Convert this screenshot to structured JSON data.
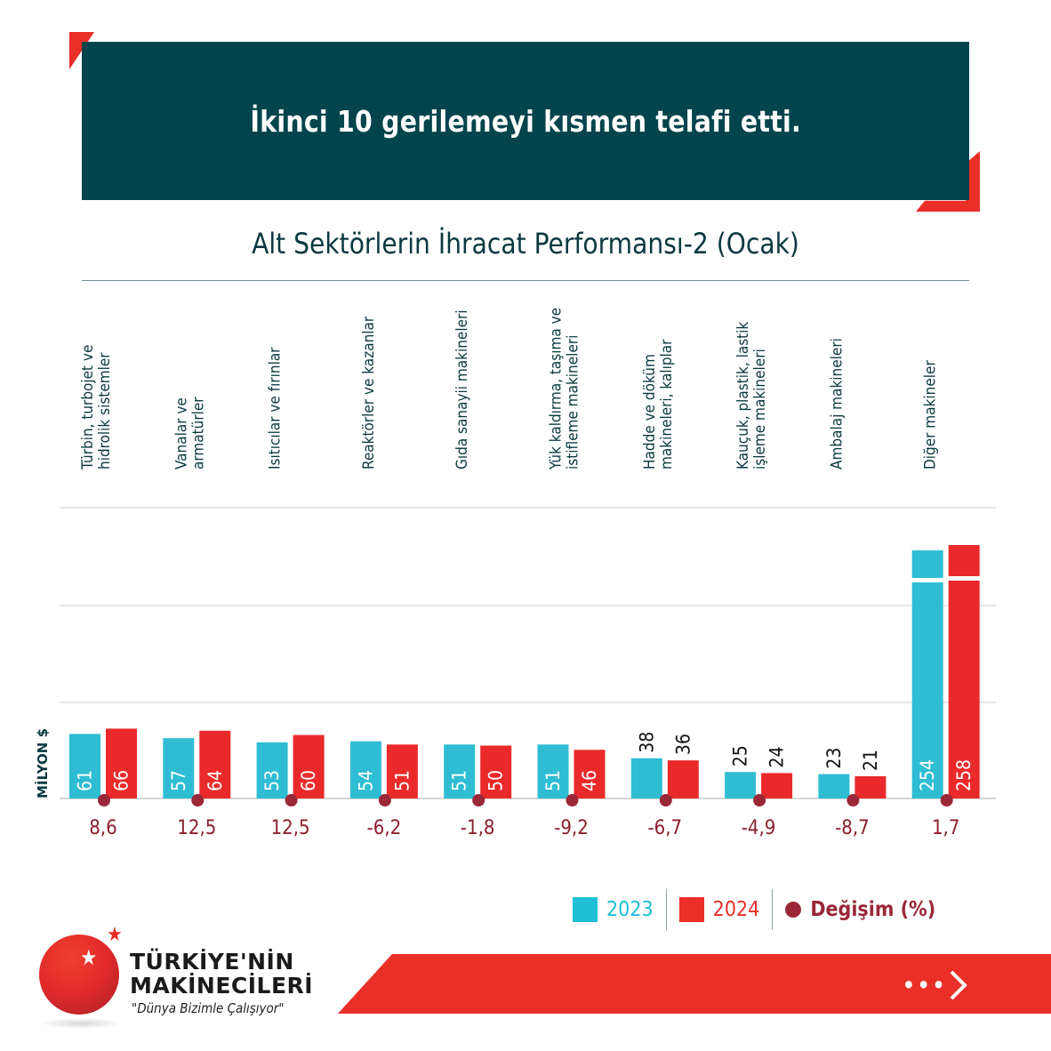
{
  "banner": {
    "headline": "İkinci 10 gerilemeyi kısmen telafi etti."
  },
  "chart_data": {
    "type": "bar",
    "title": "Alt Sektörlerin İhracat Performansı-2 (Ocak)",
    "ylabel": "MİLYON $",
    "xlabel": "",
    "grid": true,
    "axis_break": "2023 and 2024 bars for 'Diğer makineler' are truncated with a break mark",
    "categories": [
      "Türbin, turbojet ve hidrolik sistemler",
      "Vanalar ve armatürler",
      "Isıtıcılar ve fırınlar",
      "Reaktörler ve kazanlar",
      "Gıda sanayii makineleri",
      "Yük kaldırma, taşıma ve istifleme makineleri",
      "Hadde ve döküm makineleri, kalıplar",
      "Kauçuk, plastik, lastik işleme makineleri",
      "Ambalaj makineleri",
      "Diğer makineler"
    ],
    "category_lines": [
      [
        "Türbin, turbojet ve",
        "hidrolik sistemler"
      ],
      [
        "Vanalar ve",
        "armatürler"
      ],
      [
        "Isıtıcılar ve fırınlar"
      ],
      [
        "Reaktörler ve kazanlar"
      ],
      [
        "Gıda sanayii makineleri"
      ],
      [
        "Yük kaldırma, taşıma ve",
        "istifleme makineleri"
      ],
      [
        "Hadde ve döküm",
        "makineleri, kalıplar"
      ],
      [
        "Kauçuk, plastik, lastik",
        "işleme makineleri"
      ],
      [
        "Ambalaj makineleri"
      ],
      [
        "Diğer makineler"
      ]
    ],
    "series": [
      {
        "name": "2023",
        "color": "#2fbdd4",
        "values": [
          61,
          57,
          53,
          54,
          51,
          51,
          38,
          25,
          23,
          254
        ]
      },
      {
        "name": "2024",
        "color": "#ea2a2a",
        "values": [
          66,
          64,
          60,
          51,
          50,
          46,
          36,
          24,
          21,
          258
        ]
      }
    ],
    "change_pct": {
      "name": "Değişim (%)",
      "color": "#9a2838",
      "labels": [
        "8,6",
        "12,5",
        "12,5",
        "-6,2",
        "-1,8",
        "-9,2",
        "-6,7",
        "-4,9",
        "-8,7",
        "1,7"
      ],
      "values": [
        8.6,
        12.5,
        12.5,
        -6.2,
        -1.8,
        -9.2,
        -6.7,
        -4.9,
        -8.7,
        1.7
      ]
    },
    "legend": [
      "2023",
      "2024",
      "Değişim (%)"
    ],
    "legend_position": "bottom-right"
  },
  "legend": {
    "items": [
      {
        "label": "2023",
        "color": "#1fbfd6",
        "shape": "square"
      },
      {
        "label": "2024",
        "color": "#ea2e28",
        "shape": "square"
      },
      {
        "label": "Değişim (%)",
        "color": "#9a2838",
        "shape": "dot"
      }
    ]
  },
  "logo": {
    "line1": "TÜRKİYE'NİN",
    "line2": "MAKİNECİLERİ",
    "slogan": "\"Dünya Bizimle Çalışıyor\"",
    "star_icon": "★"
  },
  "footer": {
    "next_dots": "•••",
    "next_icon": "chevron-right"
  }
}
